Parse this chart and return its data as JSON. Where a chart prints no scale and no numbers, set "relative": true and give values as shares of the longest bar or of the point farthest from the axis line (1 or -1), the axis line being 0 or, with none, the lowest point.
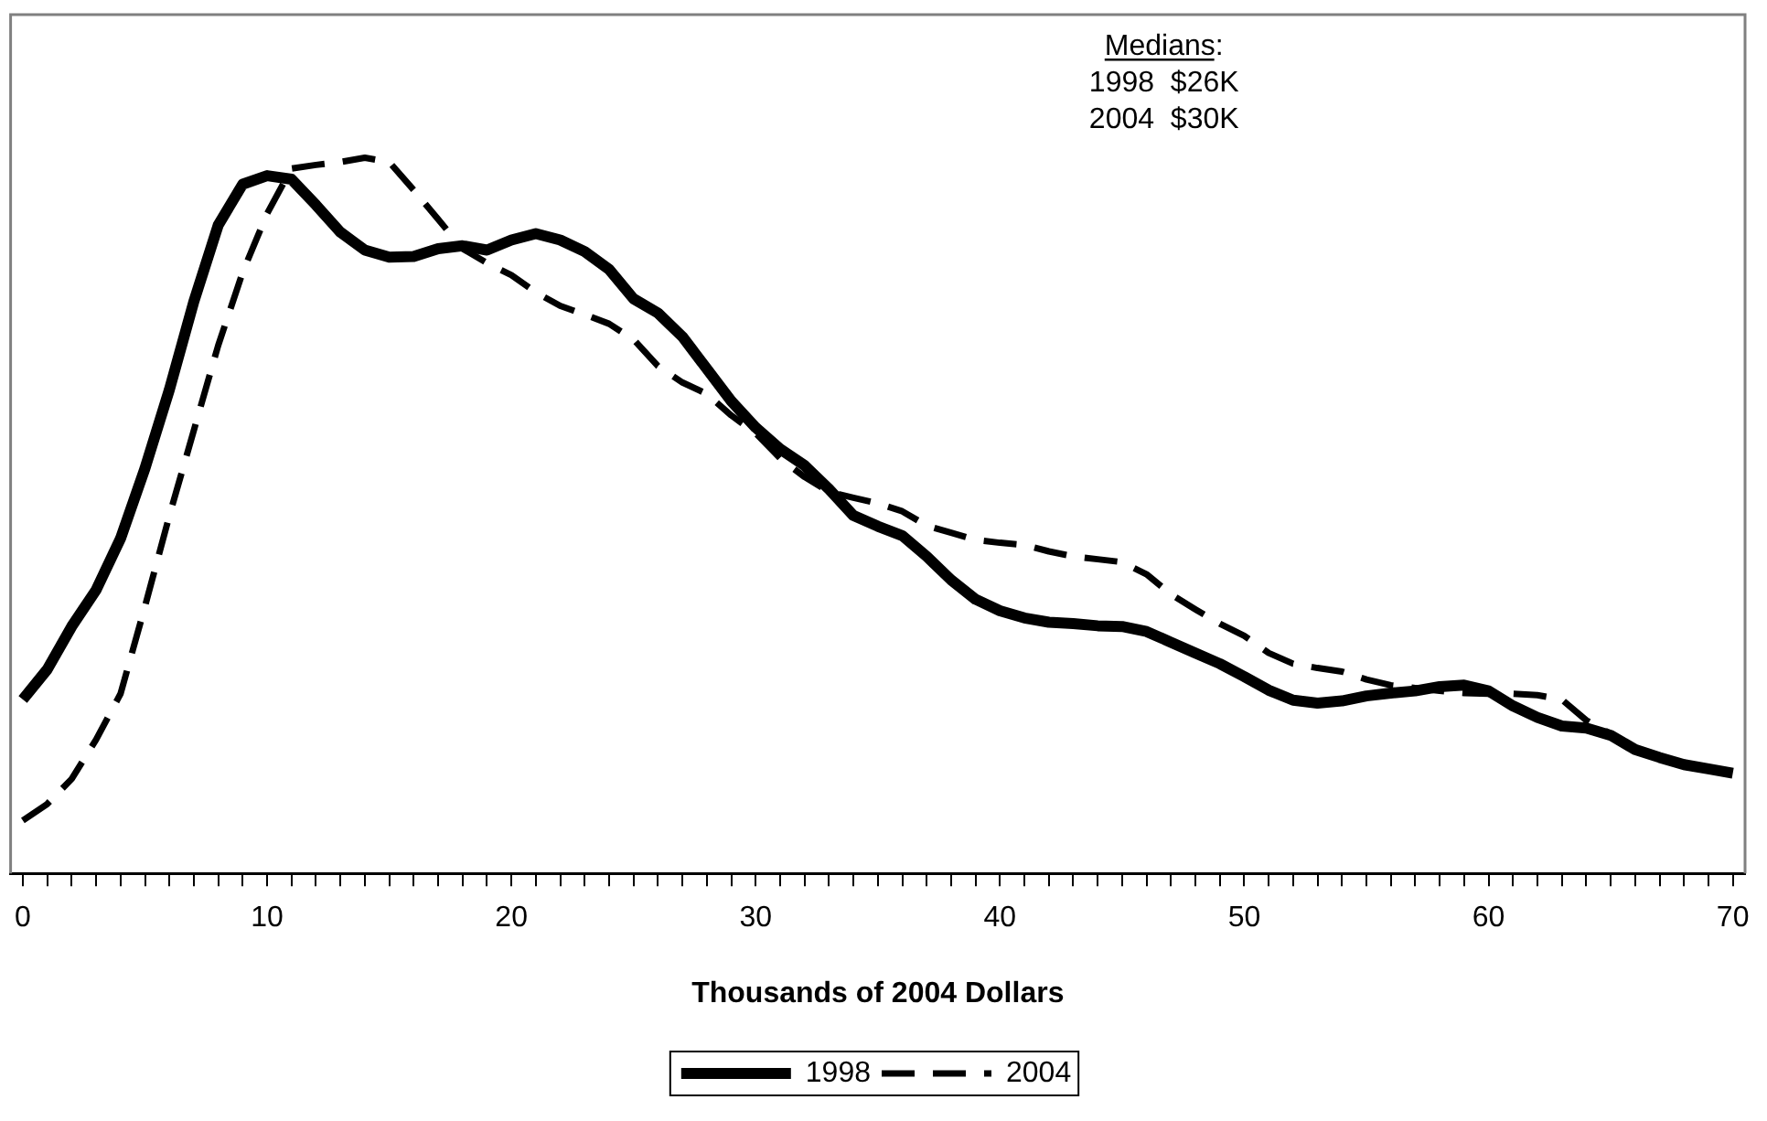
{
  "chart_data": {
    "type": "line",
    "relative": true,
    "xlabel": "Thousands of 2004 Dollars",
    "x": [
      0,
      1,
      2,
      3,
      4,
      5,
      6,
      7,
      8,
      9,
      10,
      11,
      12,
      13,
      14,
      15,
      16,
      17,
      18,
      19,
      20,
      21,
      22,
      23,
      24,
      25,
      26,
      27,
      28,
      29,
      30,
      31,
      32,
      33,
      34,
      35,
      36,
      37,
      38,
      39,
      40,
      41,
      42,
      43,
      44,
      45,
      46,
      47,
      48,
      49,
      50,
      51,
      52,
      53,
      54,
      55,
      56,
      57,
      58,
      59,
      60,
      61,
      62,
      63,
      64,
      65,
      66,
      67,
      68,
      69,
      70
    ],
    "xlim": [
      -0.5,
      70.5
    ],
    "xticks": [
      0,
      {
        "value": 1,
        "label": null
      },
      {
        "value": 2,
        "label": null
      },
      {
        "value": 3,
        "label": null
      },
      {
        "value": 4,
        "label": null
      },
      {
        "value": 5,
        "label": null
      },
      {
        "value": 6,
        "label": null
      },
      {
        "value": 7,
        "label": null
      },
      {
        "value": 8,
        "label": null
      },
      {
        "value": 9,
        "label": null
      },
      10,
      {
        "value": 11,
        "label": null
      },
      {
        "value": 12,
        "label": null
      },
      {
        "value": 13,
        "label": null
      },
      {
        "value": 14,
        "label": null
      },
      {
        "value": 15,
        "label": null
      },
      {
        "value": 16,
        "label": null
      },
      {
        "value": 17,
        "label": null
      },
      {
        "value": 18,
        "label": null
      },
      {
        "value": 19,
        "label": null
      },
      20,
      {
        "value": 21,
        "label": null
      },
      {
        "value": 22,
        "label": null
      },
      {
        "value": 23,
        "label": null
      },
      {
        "value": 24,
        "label": null
      },
      {
        "value": 25,
        "label": null
      },
      {
        "value": 26,
        "label": null
      },
      {
        "value": 27,
        "label": null
      },
      {
        "value": 28,
        "label": null
      },
      {
        "value": 29,
        "label": null
      },
      30,
      {
        "value": 31,
        "label": null
      },
      {
        "value": 32,
        "label": null
      },
      {
        "value": 33,
        "label": null
      },
      {
        "value": 34,
        "label": null
      },
      {
        "value": 35,
        "label": null
      },
      {
        "value": 36,
        "label": null
      },
      {
        "value": 37,
        "label": null
      },
      {
        "value": 38,
        "label": null
      },
      {
        "value": 39,
        "label": null
      },
      40,
      {
        "value": 41,
        "label": null
      },
      {
        "value": 42,
        "label": null
      },
      {
        "value": 43,
        "label": null
      },
      {
        "value": 44,
        "label": null
      },
      {
        "value": 45,
        "label": null
      },
      {
        "value": 46,
        "label": null
      },
      {
        "value": 47,
        "label": null
      },
      {
        "value": 48,
        "label": null
      },
      {
        "value": 49,
        "label": null
      },
      50,
      {
        "value": 51,
        "label": null
      },
      {
        "value": 52,
        "label": null
      },
      {
        "value": 53,
        "label": null
      },
      {
        "value": 54,
        "label": null
      },
      {
        "value": 55,
        "label": null
      },
      {
        "value": 56,
        "label": null
      },
      {
        "value": 57,
        "label": null
      },
      {
        "value": 58,
        "label": null
      },
      {
        "value": 59,
        "label": null
      },
      60,
      {
        "value": 61,
        "label": null
      },
      {
        "value": 62,
        "label": null
      },
      {
        "value": 63,
        "label": null
      },
      {
        "value": 64,
        "label": null
      },
      {
        "value": 65,
        "label": null
      },
      {
        "value": 66,
        "label": null
      },
      {
        "value": 67,
        "label": null
      },
      {
        "value": 68,
        "label": null
      },
      {
        "value": 69,
        "label": null
      },
      70
    ],
    "tick_labels": "x",
    "grid": false,
    "legend": "bottom",
    "marker": "none",
    "series": [
      {
        "name": "1998",
        "color": "#000000",
        "line_style": "solid",
        "values": [
          0.243,
          0.285,
          0.345,
          0.396,
          0.468,
          0.566,
          0.676,
          0.799,
          0.906,
          0.963,
          0.975,
          0.97,
          0.934,
          0.896,
          0.871,
          0.861,
          0.862,
          0.873,
          0.877,
          0.871,
          0.885,
          0.894,
          0.885,
          0.869,
          0.844,
          0.803,
          0.783,
          0.75,
          0.705,
          0.66,
          0.623,
          0.593,
          0.57,
          0.537,
          0.5,
          0.485,
          0.472,
          0.443,
          0.41,
          0.383,
          0.367,
          0.357,
          0.351,
          0.349,
          0.346,
          0.345,
          0.338,
          0.323,
          0.308,
          0.293,
          0.275,
          0.256,
          0.242,
          0.238,
          0.241,
          0.248,
          0.252,
          0.255,
          0.261,
          0.263,
          0.255,
          0.234,
          0.218,
          0.206,
          0.203,
          0.193,
          0.173,
          0.162,
          0.152,
          0.146,
          0.14
        ]
      },
      {
        "name": "2004",
        "color": "#000000",
        "line_style": "dashed",
        "values": [
          0.074,
          0.097,
          0.132,
          0.187,
          0.251,
          0.373,
          0.5,
          0.619,
          0.738,
          0.84,
          0.922,
          0.985,
          0.99,
          0.994,
          1,
          0.994,
          0.955,
          0.914,
          0.873,
          0.853,
          0.836,
          0.812,
          0.793,
          0.781,
          0.768,
          0.746,
          0.709,
          0.686,
          0.67,
          0.64,
          0.615,
          0.58,
          0.554,
          0.533,
          0.525,
          0.517,
          0.506,
          0.486,
          0.476,
          0.466,
          0.462,
          0.459,
          0.45,
          0.443,
          0.439,
          0.435,
          0.418,
          0.39,
          0.369,
          0.349,
          0.332,
          0.308,
          0.293,
          0.287,
          0.282,
          0.271,
          0.263,
          0.259,
          0.255,
          0.252,
          0.251,
          0.251,
          0.249,
          0.243,
          0.214,
          0.195,
          0.173,
          0.162,
          0.152,
          0.146,
          0.14
        ]
      }
    ],
    "annotations": [
      "Medians:",
      "1998  $26K",
      "2004  $30K"
    ]
  }
}
